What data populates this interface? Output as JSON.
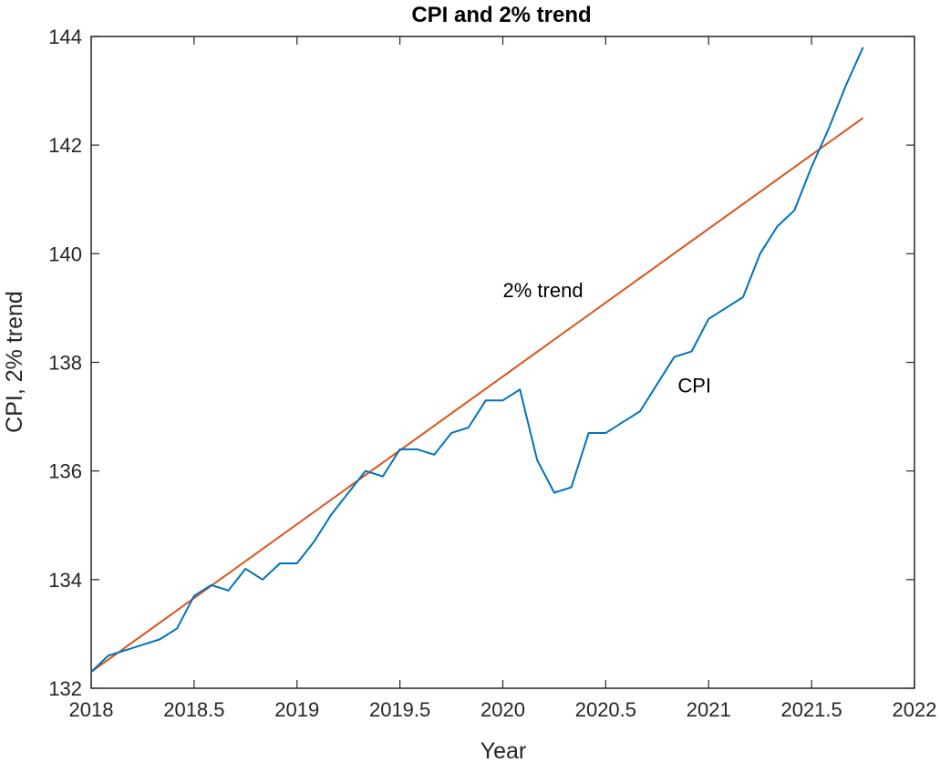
{
  "chart_data": {
    "type": "line",
    "title": "CPI and 2% trend",
    "xlabel": "Year",
    "ylabel": "CPI, 2% trend",
    "xlim": [
      2018,
      2022
    ],
    "ylim": [
      132,
      144
    ],
    "xticks": [
      2018,
      2018.5,
      2019,
      2019.5,
      2020,
      2020.5,
      2021,
      2021.5,
      2022
    ],
    "xtick_labels": [
      "2018",
      "2018.5",
      "2019",
      "2019.5",
      "2020",
      "2020.5",
      "2021",
      "2021.5",
      "2022"
    ],
    "yticks": [
      132,
      134,
      136,
      138,
      140,
      142,
      144
    ],
    "ytick_labels": [
      "132",
      "134",
      "136",
      "138",
      "140",
      "142",
      "144"
    ],
    "grid": false,
    "annotations": [
      {
        "text": "2% trend",
        "x": 2020.0,
        "y": 139.2
      },
      {
        "text": "CPI",
        "x": 2020.85,
        "y": 137.45
      }
    ],
    "series": [
      {
        "name": "CPI",
        "color": "#0072BD",
        "x": [
          2018.0,
          2018.083,
          2018.167,
          2018.25,
          2018.333,
          2018.417,
          2018.5,
          2018.583,
          2018.667,
          2018.75,
          2018.833,
          2018.917,
          2019.0,
          2019.083,
          2019.167,
          2019.25,
          2019.333,
          2019.417,
          2019.5,
          2019.583,
          2019.667,
          2019.75,
          2019.833,
          2019.917,
          2020.0,
          2020.083,
          2020.167,
          2020.25,
          2020.333,
          2020.417,
          2020.5,
          2020.583,
          2020.667,
          2020.75,
          2020.833,
          2020.917,
          2021.0,
          2021.083,
          2021.167,
          2021.25,
          2021.333,
          2021.417,
          2021.5,
          2021.583,
          2021.667,
          2021.75
        ],
        "values": [
          132.3,
          132.6,
          132.7,
          132.8,
          132.9,
          133.1,
          133.7,
          133.9,
          133.8,
          134.2,
          134.0,
          134.3,
          134.3,
          134.7,
          135.2,
          135.6,
          136.0,
          135.9,
          136.4,
          136.4,
          136.3,
          136.7,
          136.8,
          137.3,
          137.3,
          137.5,
          136.2,
          135.6,
          135.7,
          136.7,
          136.7,
          136.9,
          137.1,
          137.6,
          138.1,
          138.2,
          138.8,
          139.0,
          139.2,
          140.0,
          140.5,
          140.8,
          141.6,
          142.3,
          143.1,
          143.8
        ]
      },
      {
        "name": "2% trend",
        "color": "#D95319",
        "x": [
          2018.0,
          2021.75
        ],
        "values": [
          132.3,
          142.5
        ]
      }
    ]
  }
}
